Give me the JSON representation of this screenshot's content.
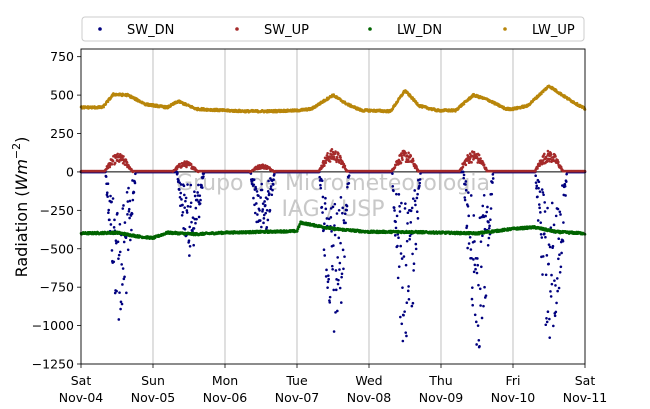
{
  "chart_data": {
    "type": "scatter",
    "title": "",
    "ylabel_text": "Radiation (",
    "ylabel_math": "Wm",
    "ylabel_sup": "−2",
    "ylabel_close": ")",
    "xlabel": "",
    "watermark": [
      "Grupo de Micrometeorologia",
      "IAG / USP"
    ],
    "ylim": [
      -1250,
      800
    ],
    "yticks": [
      -1250,
      -1000,
      -750,
      -500,
      -250,
      0,
      250,
      500,
      750
    ],
    "xlim": [
      0,
      7
    ],
    "x_unit": "days from Sat Nov-04 00:00",
    "xticks": [
      {
        "day": "Sat",
        "date": "Nov-04"
      },
      {
        "day": "Sun",
        "date": "Nov-05"
      },
      {
        "day": "Mon",
        "date": "Nov-06"
      },
      {
        "day": "Tue",
        "date": "Nov-07"
      },
      {
        "day": "Wed",
        "date": "Nov-08"
      },
      {
        "day": "Thu",
        "date": "Nov-09"
      },
      {
        "day": "Fri",
        "date": "Nov-10"
      },
      {
        "day": "Sat",
        "date": "Nov-11"
      }
    ],
    "grid": "vertical",
    "zero_line": true,
    "legend_position": "top",
    "series": [
      {
        "name": "SW_DN",
        "color": "#00007f",
        "daily_peak": [
          -1000,
          -550,
          -450,
          -1130,
          -1210,
          -1180,
          -1180
        ],
        "daily_noon": [
          0.55,
          0.52,
          0.52,
          0.52,
          0.52,
          0.52,
          0.53
        ],
        "daily_width": [
          0.42,
          0.38,
          0.34,
          0.42,
          0.4,
          0.42,
          0.44
        ],
        "night_value": 0
      },
      {
        "name": "SW_UP",
        "color": "#a52a2a",
        "daily_peak": [
          120,
          70,
          50,
          150,
          140,
          140,
          140
        ],
        "daily_noon": [
          0.52,
          0.45,
          0.52,
          0.5,
          0.5,
          0.45,
          0.5
        ],
        "daily_width": [
          0.4,
          0.36,
          0.34,
          0.4,
          0.38,
          0.4,
          0.4
        ],
        "night_value": 5
      },
      {
        "name": "LW_DN",
        "color": "#006400",
        "anchors": [
          [
            0.0,
            -400
          ],
          [
            0.5,
            -395
          ],
          [
            0.8,
            -420
          ],
          [
            1.0,
            -430
          ],
          [
            1.2,
            -395
          ],
          [
            1.6,
            -405
          ],
          [
            2.0,
            -395
          ],
          [
            2.5,
            -390
          ],
          [
            3.0,
            -385
          ],
          [
            3.05,
            -330
          ],
          [
            3.5,
            -370
          ],
          [
            4.0,
            -390
          ],
          [
            4.5,
            -390
          ],
          [
            5.0,
            -395
          ],
          [
            5.5,
            -400
          ],
          [
            6.0,
            -370
          ],
          [
            6.3,
            -360
          ],
          [
            6.6,
            -390
          ],
          [
            7.0,
            -400
          ]
        ]
      },
      {
        "name": "LW_UP",
        "color": "#b8860b",
        "anchors": [
          [
            0.0,
            420
          ],
          [
            0.3,
            420
          ],
          [
            0.45,
            505
          ],
          [
            0.65,
            500
          ],
          [
            0.9,
            440
          ],
          [
            1.2,
            420
          ],
          [
            1.35,
            460
          ],
          [
            1.6,
            410
          ],
          [
            2.0,
            400
          ],
          [
            2.3,
            395
          ],
          [
            2.6,
            395
          ],
          [
            3.0,
            400
          ],
          [
            3.2,
            410
          ],
          [
            3.5,
            500
          ],
          [
            3.7,
            440
          ],
          [
            3.9,
            400
          ],
          [
            4.0,
            400
          ],
          [
            4.3,
            395
          ],
          [
            4.5,
            530
          ],
          [
            4.7,
            430
          ],
          [
            4.95,
            400
          ],
          [
            5.2,
            400
          ],
          [
            5.45,
            500
          ],
          [
            5.65,
            470
          ],
          [
            5.9,
            410
          ],
          [
            6.0,
            410
          ],
          [
            6.2,
            430
          ],
          [
            6.5,
            560
          ],
          [
            6.75,
            480
          ],
          [
            7.0,
            410
          ]
        ]
      }
    ]
  }
}
